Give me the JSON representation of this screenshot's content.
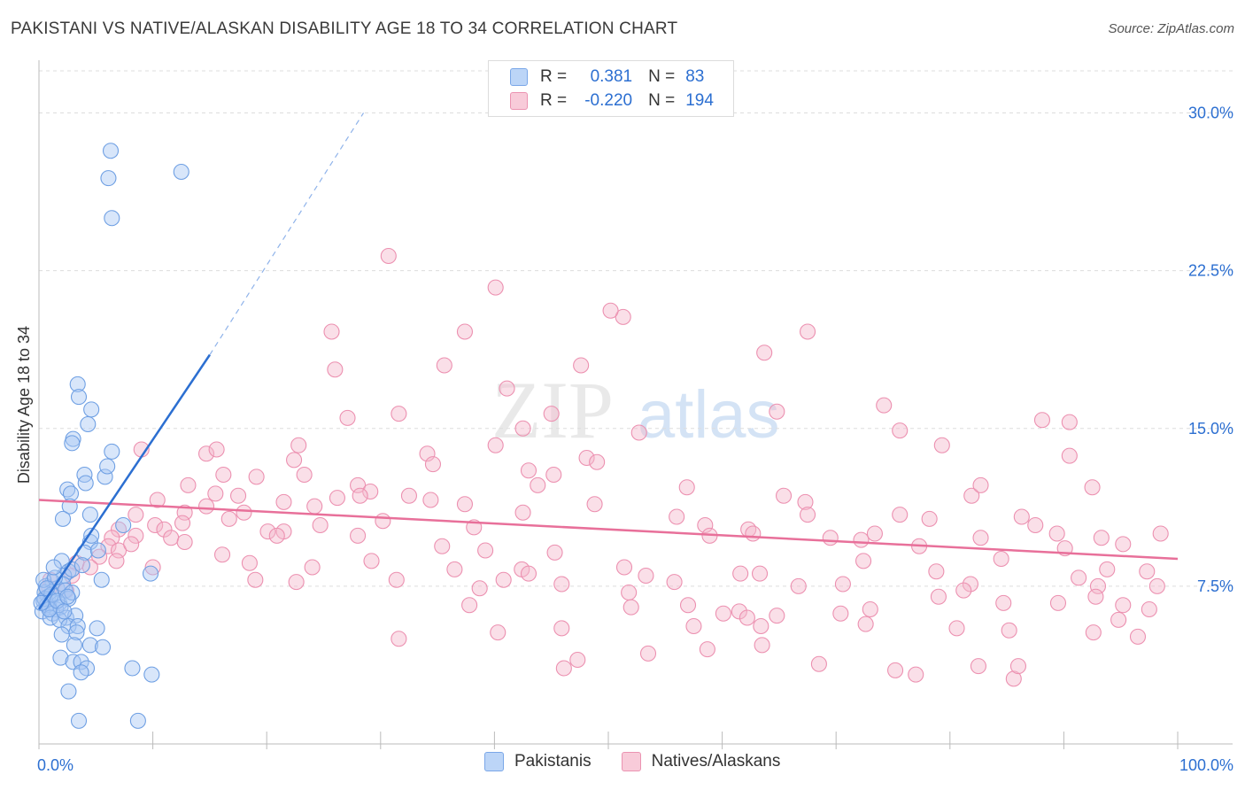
{
  "title": "PAKISTANI VS NATIVE/ALASKAN DISABILITY AGE 18 TO 34 CORRELATION CHART",
  "source": "Source: ZipAtlas.com",
  "watermark": {
    "zip": "ZIP",
    "atlas": "atlas"
  },
  "colors": {
    "blue": "#2c6fd1",
    "blue_fill": "#a9c8f3",
    "pink": "#e8709a",
    "pink_fill": "#f5b8cc",
    "axis_text": "#2c6fd1"
  },
  "legend": {
    "r_label": "R =",
    "n_label": "N =",
    "rows": [
      {
        "series": "Pakistanis",
        "r": "0.381",
        "n": "83"
      },
      {
        "series": "Natives/Alaskans",
        "r": "-0.220",
        "n": "194"
      }
    ]
  },
  "chart_data": {
    "type": "scatter",
    "title": "PAKISTANI VS NATIVE/ALASKAN DISABILITY AGE 18 TO 34 CORRELATION CHART",
    "xlabel": "",
    "ylabel": "Disability Age 18 to 34",
    "xlim": [
      0,
      100
    ],
    "ylim": [
      0,
      32
    ],
    "x_tick_labels": [
      "0.0%",
      "100.0%"
    ],
    "y_ticks": [
      7.5,
      15.0,
      22.5,
      30.0
    ],
    "y_tick_labels": [
      "7.5%",
      "15.0%",
      "22.5%",
      "30.0%"
    ],
    "grid": true,
    "legend_position": "top-center",
    "series": [
      {
        "name": "Pakistanis",
        "color": "#2c6fd1",
        "trend": {
          "x": [
            0,
            15
          ],
          "y": [
            6.4,
            18.5
          ],
          "dashed_extension_to": [
            28.5,
            30.0
          ]
        },
        "points": [
          [
            6.3,
            28.2
          ],
          [
            6.1,
            26.9
          ],
          [
            6.4,
            25.0
          ],
          [
            12.5,
            27.2
          ],
          [
            3.4,
            17.1
          ],
          [
            3.5,
            16.5
          ],
          [
            4.6,
            15.9
          ],
          [
            4.3,
            15.2
          ],
          [
            3.0,
            14.5
          ],
          [
            2.9,
            14.3
          ],
          [
            6.4,
            13.9
          ],
          [
            4.0,
            12.8
          ],
          [
            5.8,
            12.7
          ],
          [
            6.0,
            13.2
          ],
          [
            4.1,
            12.4
          ],
          [
            2.5,
            12.1
          ],
          [
            2.8,
            11.9
          ],
          [
            2.7,
            11.3
          ],
          [
            2.1,
            10.7
          ],
          [
            4.5,
            10.9
          ],
          [
            7.4,
            10.4
          ],
          [
            4.5,
            9.6
          ],
          [
            4.6,
            9.9
          ],
          [
            4.0,
            9.1
          ],
          [
            5.2,
            9.2
          ],
          [
            2.0,
            8.7
          ],
          [
            2.6,
            8.2
          ],
          [
            2.2,
            8.0
          ],
          [
            2.9,
            8.3
          ],
          [
            5.5,
            7.8
          ],
          [
            9.8,
            8.1
          ],
          [
            1.2,
            7.7
          ],
          [
            1.6,
            7.4
          ],
          [
            2.1,
            7.6
          ],
          [
            0.6,
            7.5
          ],
          [
            0.5,
            7.2
          ],
          [
            0.8,
            7.0
          ],
          [
            1.0,
            6.9
          ],
          [
            0.4,
            6.8
          ],
          [
            1.8,
            6.7
          ],
          [
            2.3,
            7.3
          ],
          [
            2.6,
            6.9
          ],
          [
            1.5,
            6.4
          ],
          [
            0.9,
            6.5
          ],
          [
            0.3,
            6.3
          ],
          [
            0.7,
            6.6
          ],
          [
            1.2,
            6.2
          ],
          [
            1.9,
            6.5
          ],
          [
            0.5,
            6.9
          ],
          [
            1.1,
            7.1
          ],
          [
            2.4,
            6.0
          ],
          [
            3.2,
            6.1
          ],
          [
            1.0,
            6.0
          ],
          [
            1.8,
            5.9
          ],
          [
            2.6,
            5.6
          ],
          [
            3.4,
            5.6
          ],
          [
            5.1,
            5.5
          ],
          [
            3.3,
            5.3
          ],
          [
            2.0,
            5.2
          ],
          [
            3.1,
            4.7
          ],
          [
            4.5,
            4.7
          ],
          [
            5.6,
            4.6
          ],
          [
            1.9,
            4.1
          ],
          [
            3.0,
            3.9
          ],
          [
            3.7,
            3.9
          ],
          [
            4.2,
            3.6
          ],
          [
            3.7,
            3.4
          ],
          [
            8.2,
            3.6
          ],
          [
            9.9,
            3.3
          ],
          [
            2.6,
            2.5
          ],
          [
            3.5,
            1.1
          ],
          [
            8.7,
            1.1
          ],
          [
            0.4,
            7.8
          ],
          [
            1.4,
            7.9
          ],
          [
            2.9,
            7.2
          ],
          [
            0.9,
            6.4
          ],
          [
            1.6,
            6.8
          ],
          [
            2.2,
            6.3
          ],
          [
            0.7,
            7.4
          ],
          [
            3.8,
            8.5
          ],
          [
            1.3,
            8.4
          ],
          [
            2.5,
            7.0
          ],
          [
            0.2,
            6.7
          ]
        ]
      },
      {
        "name": "Natives/Alaskans",
        "color": "#e8709a",
        "trend": {
          "x": [
            0,
            100
          ],
          "y": [
            11.6,
            8.8
          ]
        },
        "points": [
          [
            30.7,
            23.2
          ],
          [
            40.1,
            21.7
          ],
          [
            51.3,
            20.3
          ],
          [
            50.2,
            20.6
          ],
          [
            25.7,
            19.6
          ],
          [
            37.4,
            19.6
          ],
          [
            67.5,
            19.6
          ],
          [
            47.6,
            18.0
          ],
          [
            63.7,
            18.6
          ],
          [
            35.6,
            18.0
          ],
          [
            26.0,
            17.8
          ],
          [
            41.1,
            16.9
          ],
          [
            74.2,
            16.1
          ],
          [
            27.1,
            15.5
          ],
          [
            31.6,
            15.7
          ],
          [
            45.0,
            15.7
          ],
          [
            64.8,
            15.8
          ],
          [
            88.1,
            15.4
          ],
          [
            90.5,
            15.3
          ],
          [
            42.5,
            15.0
          ],
          [
            52.7,
            14.8
          ],
          [
            75.6,
            14.9
          ],
          [
            9.0,
            14.0
          ],
          [
            14.7,
            13.8
          ],
          [
            15.6,
            14.0
          ],
          [
            22.8,
            14.2
          ],
          [
            22.4,
            13.5
          ],
          [
            34.1,
            13.8
          ],
          [
            40.1,
            14.2
          ],
          [
            48.1,
            13.6
          ],
          [
            79.3,
            14.2
          ],
          [
            90.5,
            13.7
          ],
          [
            34.6,
            13.3
          ],
          [
            43.0,
            13.0
          ],
          [
            49.0,
            13.4
          ],
          [
            16.2,
            12.8
          ],
          [
            19.1,
            12.7
          ],
          [
            23.3,
            12.8
          ],
          [
            28.0,
            12.3
          ],
          [
            29.1,
            12.0
          ],
          [
            43.8,
            12.3
          ],
          [
            45.2,
            12.8
          ],
          [
            56.9,
            12.2
          ],
          [
            13.1,
            12.3
          ],
          [
            17.5,
            11.8
          ],
          [
            15.5,
            11.9
          ],
          [
            26.2,
            11.7
          ],
          [
            21.5,
            11.5
          ],
          [
            24.2,
            11.3
          ],
          [
            34.4,
            11.6
          ],
          [
            14.7,
            11.3
          ],
          [
            12.8,
            11.0
          ],
          [
            10.4,
            11.6
          ],
          [
            18.0,
            11.0
          ],
          [
            16.7,
            10.7
          ],
          [
            28.2,
            11.8
          ],
          [
            32.5,
            11.8
          ],
          [
            37.4,
            11.4
          ],
          [
            65.4,
            11.8
          ],
          [
            67.3,
            11.5
          ],
          [
            81.9,
            11.8
          ],
          [
            82.7,
            12.3
          ],
          [
            92.5,
            12.2
          ],
          [
            8.5,
            10.9
          ],
          [
            7.0,
            10.2
          ],
          [
            10.2,
            10.4
          ],
          [
            11.0,
            10.2
          ],
          [
            12.6,
            10.5
          ],
          [
            20.1,
            10.1
          ],
          [
            21.5,
            10.1
          ],
          [
            30.2,
            10.6
          ],
          [
            38.2,
            10.3
          ],
          [
            42.5,
            11.0
          ],
          [
            48.8,
            11.4
          ],
          [
            56.0,
            10.8
          ],
          [
            58.5,
            10.4
          ],
          [
            62.3,
            10.2
          ],
          [
            67.5,
            10.9
          ],
          [
            75.6,
            10.9
          ],
          [
            78.2,
            10.7
          ],
          [
            86.3,
            10.8
          ],
          [
            87.5,
            10.4
          ],
          [
            89.4,
            10.0
          ],
          [
            6.4,
            9.8
          ],
          [
            8.5,
            9.9
          ],
          [
            11.6,
            9.8
          ],
          [
            12.8,
            9.6
          ],
          [
            6.1,
            9.4
          ],
          [
            7.0,
            9.2
          ],
          [
            8.1,
            9.5
          ],
          [
            16.1,
            9.0
          ],
          [
            20.9,
            9.9
          ],
          [
            24.7,
            10.4
          ],
          [
            28.0,
            9.9
          ],
          [
            35.4,
            9.4
          ],
          [
            39.2,
            9.2
          ],
          [
            45.3,
            9.1
          ],
          [
            58.9,
            9.9
          ],
          [
            62.7,
            10.0
          ],
          [
            69.5,
            9.8
          ],
          [
            72.2,
            9.7
          ],
          [
            73.4,
            10.0
          ],
          [
            77.3,
            9.4
          ],
          [
            82.7,
            9.8
          ],
          [
            90.1,
            9.3
          ],
          [
            93.3,
            9.8
          ],
          [
            95.2,
            9.5
          ],
          [
            98.5,
            10.0
          ],
          [
            5.3,
            8.9
          ],
          [
            6.8,
            8.7
          ],
          [
            10.0,
            8.4
          ],
          [
            18.5,
            8.6
          ],
          [
            24.0,
            8.4
          ],
          [
            29.2,
            8.7
          ],
          [
            36.5,
            8.3
          ],
          [
            42.4,
            8.3
          ],
          [
            43.0,
            8.1
          ],
          [
            51.4,
            8.4
          ],
          [
            53.3,
            8.0
          ],
          [
            61.6,
            8.1
          ],
          [
            63.3,
            8.1
          ],
          [
            72.4,
            8.7
          ],
          [
            78.8,
            8.2
          ],
          [
            84.5,
            8.8
          ],
          [
            91.3,
            7.9
          ],
          [
            93.8,
            8.3
          ],
          [
            97.3,
            8.2
          ],
          [
            3.3,
            8.6
          ],
          [
            4.5,
            8.4
          ],
          [
            2.9,
            8.0
          ],
          [
            1.0,
            7.8
          ],
          [
            0.9,
            7.4
          ],
          [
            2.4,
            7.3
          ],
          [
            19.0,
            7.8
          ],
          [
            22.6,
            7.7
          ],
          [
            31.4,
            7.8
          ],
          [
            38.7,
            7.4
          ],
          [
            40.8,
            7.8
          ],
          [
            45.9,
            7.6
          ],
          [
            51.8,
            7.2
          ],
          [
            55.8,
            7.7
          ],
          [
            66.7,
            7.5
          ],
          [
            70.6,
            7.6
          ],
          [
            81.8,
            7.6
          ],
          [
            93.0,
            7.5
          ],
          [
            98.2,
            7.5
          ],
          [
            37.8,
            6.6
          ],
          [
            52.0,
            6.5
          ],
          [
            57.0,
            6.6
          ],
          [
            60.1,
            6.2
          ],
          [
            61.5,
            6.3
          ],
          [
            62.2,
            6.0
          ],
          [
            64.8,
            6.1
          ],
          [
            70.4,
            6.2
          ],
          [
            73.0,
            6.4
          ],
          [
            79.0,
            7.0
          ],
          [
            81.2,
            7.3
          ],
          [
            84.7,
            6.7
          ],
          [
            89.5,
            6.7
          ],
          [
            92.8,
            7.0
          ],
          [
            95.2,
            6.6
          ],
          [
            97.5,
            6.4
          ],
          [
            31.6,
            5.0
          ],
          [
            40.3,
            5.3
          ],
          [
            45.9,
            5.5
          ],
          [
            57.5,
            5.6
          ],
          [
            63.4,
            5.6
          ],
          [
            72.6,
            5.7
          ],
          [
            80.6,
            5.5
          ],
          [
            85.2,
            5.4
          ],
          [
            92.6,
            5.3
          ],
          [
            94.8,
            5.9
          ],
          [
            96.5,
            5.1
          ],
          [
            46.1,
            3.6
          ],
          [
            53.5,
            4.3
          ],
          [
            58.7,
            4.5
          ],
          [
            63.5,
            4.7
          ],
          [
            68.5,
            3.8
          ],
          [
            75.2,
            3.5
          ],
          [
            77.0,
            3.3
          ],
          [
            82.5,
            3.7
          ],
          [
            85.6,
            3.1
          ],
          [
            86.0,
            3.7
          ],
          [
            47.3,
            4.0
          ]
        ]
      }
    ]
  }
}
